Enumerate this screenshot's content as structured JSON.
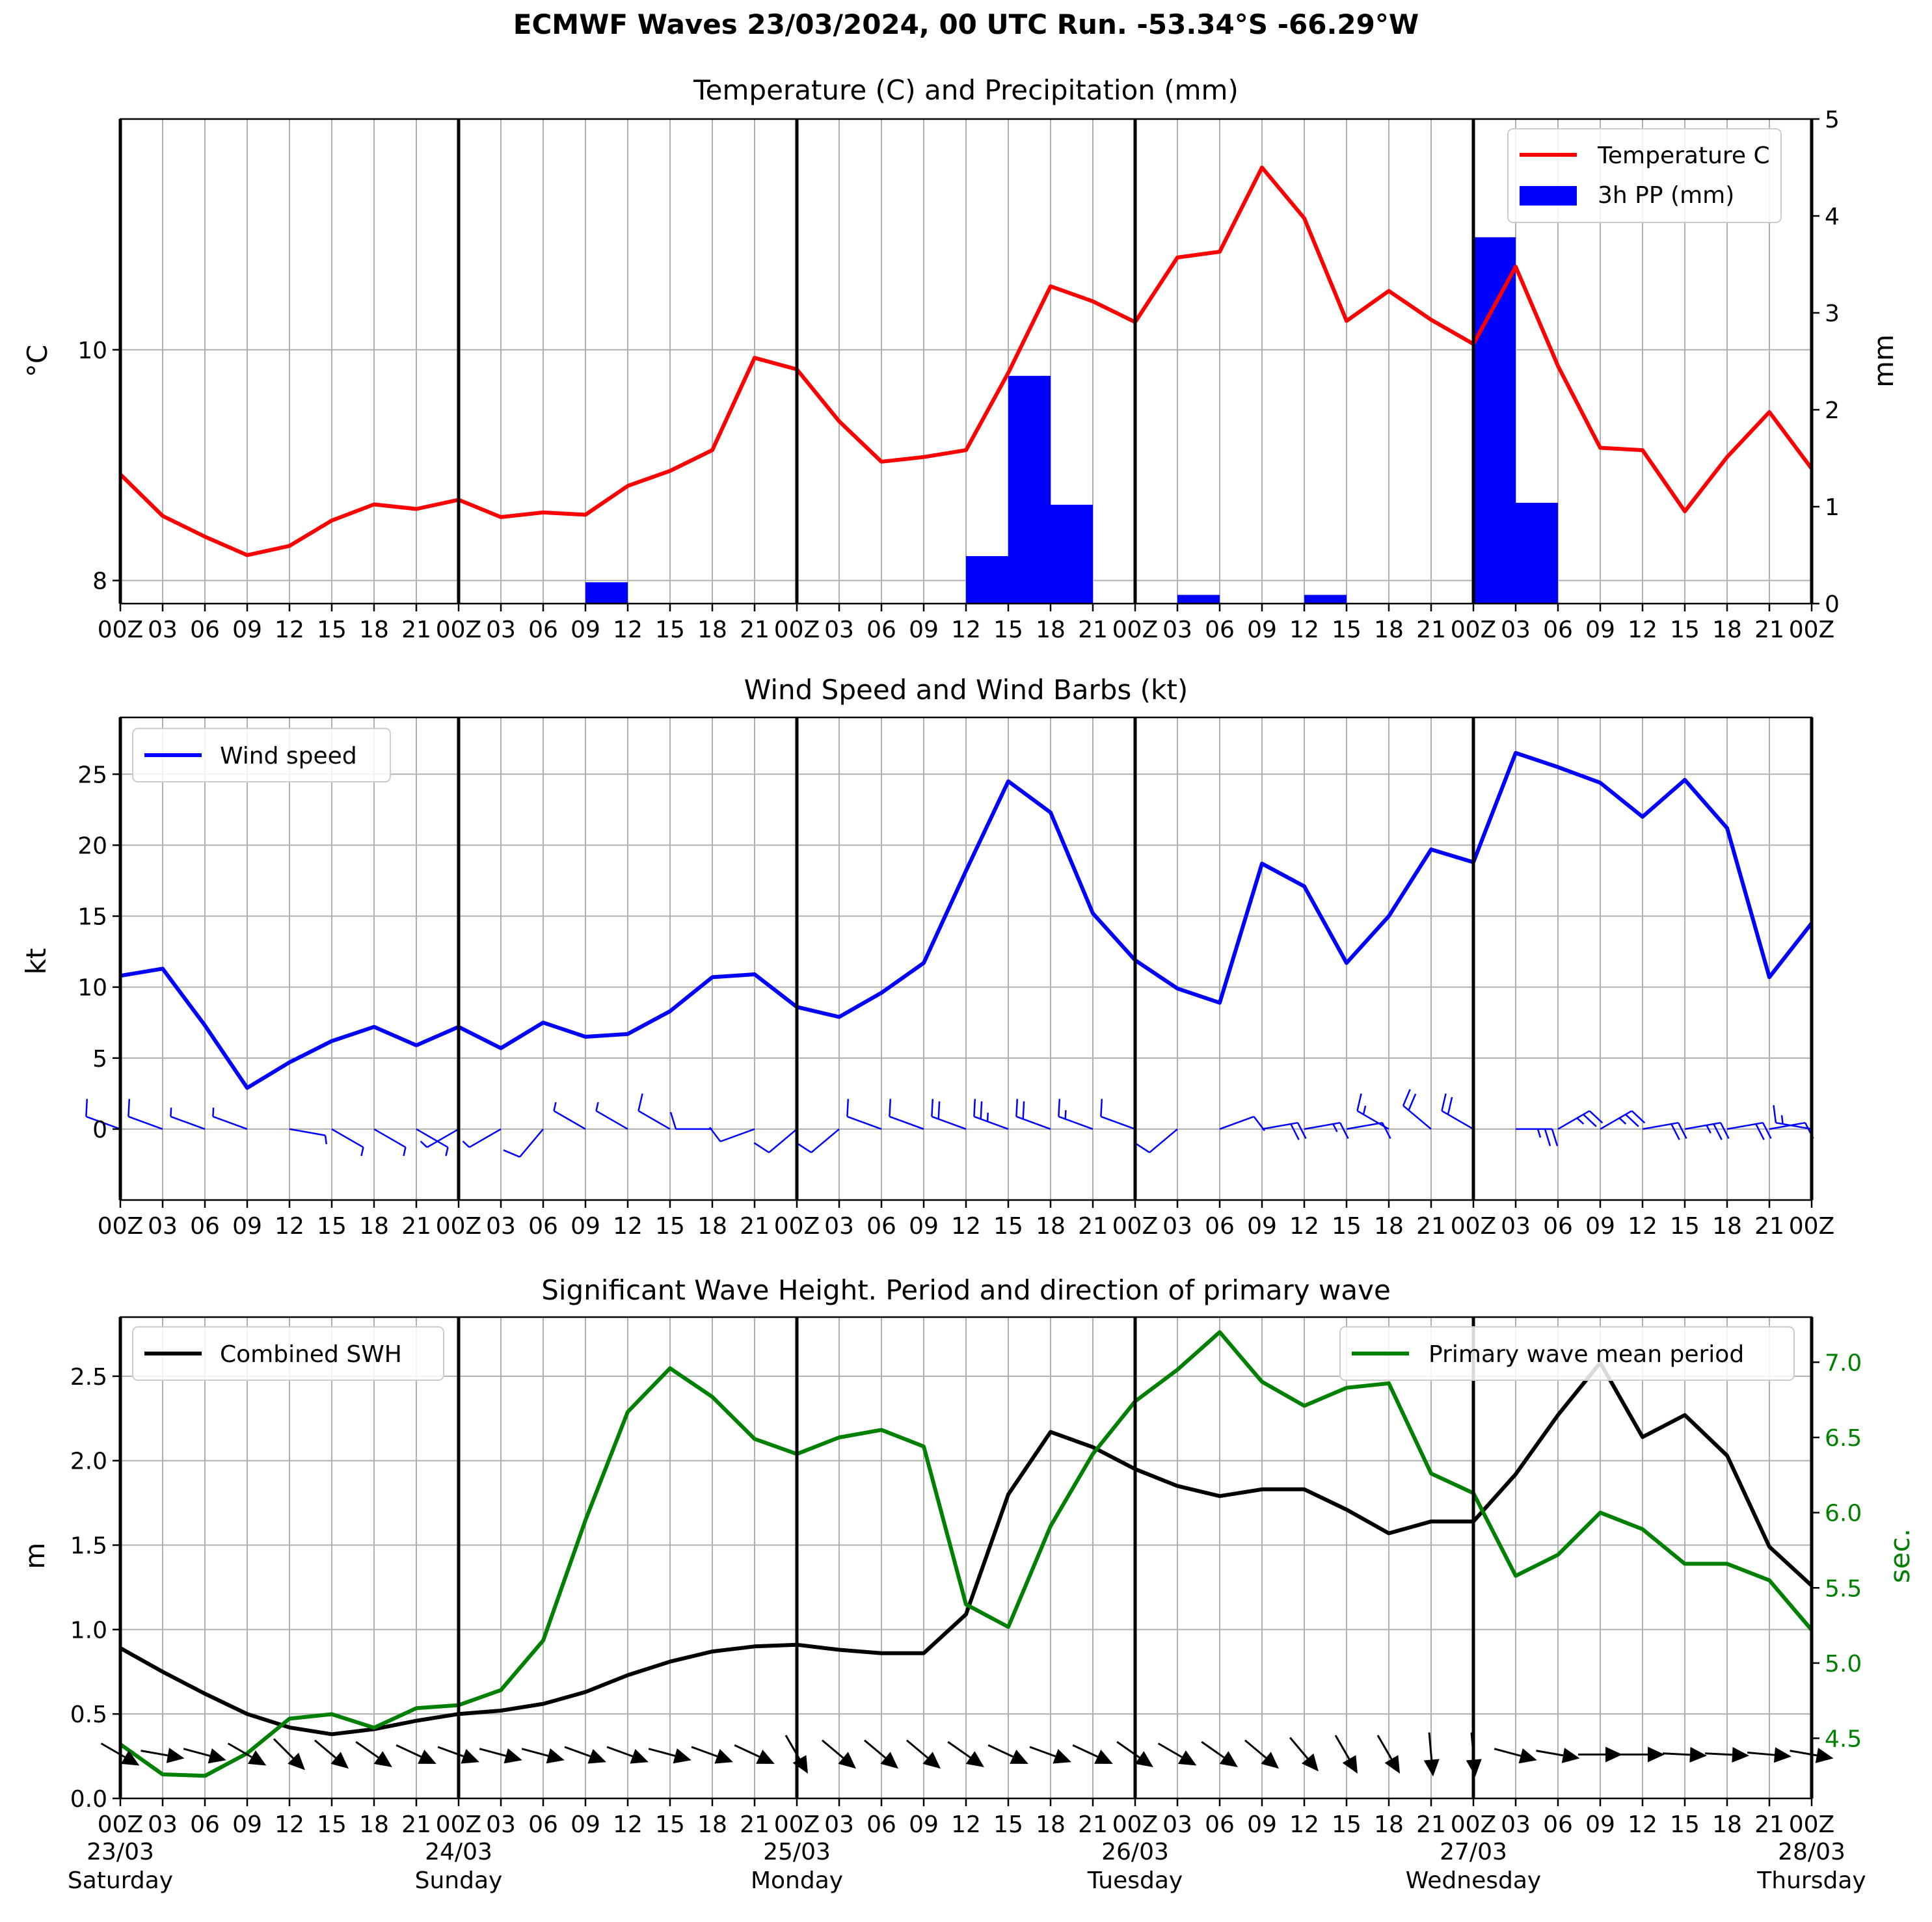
{
  "figure": {
    "title": "ECMWF Waves 23/03/2024, 00 UTC Run. -53.34°S -66.29°W"
  },
  "time_axis": {
    "tick_labels": [
      "00Z",
      "03",
      "06",
      "09",
      "12",
      "15",
      "18",
      "21",
      "00Z",
      "03",
      "06",
      "09",
      "12",
      "15",
      "18",
      "21",
      "00Z",
      "03",
      "06",
      "09",
      "12",
      "15",
      "18",
      "21",
      "00Z",
      "03",
      "06",
      "09",
      "12",
      "15",
      "18",
      "21",
      "00Z",
      "03",
      "06",
      "09",
      "12",
      "15",
      "18",
      "21",
      "00Z"
    ],
    "day_dates": [
      "23/03",
      "24/03",
      "25/03",
      "26/03",
      "27/03",
      "28/03"
    ],
    "day_names": [
      "Saturday",
      "Sunday",
      "Monday",
      "Tuesday",
      "Wednesday",
      "Thursday"
    ]
  },
  "colors": {
    "temperature": "#ff0000",
    "precip": "#0000ff",
    "wind": "#0000ff",
    "swh": "#000000",
    "period": "#008000",
    "grid": "#b0b0b0"
  },
  "chart_data": [
    {
      "type": "line",
      "title": "Temperature (C) and Precipitation (mm)",
      "ylabel": "°C",
      "y2label": "mm",
      "ylim": [
        7.8,
        12.0
      ],
      "y2lim": [
        0,
        5
      ],
      "yticks": [
        8,
        10
      ],
      "y2ticks": [
        0,
        1,
        2,
        3,
        4,
        5
      ],
      "legend_position": "top-right",
      "grid": true,
      "series": [
        {
          "name": "Temperature C",
          "kind": "line",
          "values": [
            8.92,
            8.56,
            8.38,
            8.22,
            8.3,
            8.52,
            8.66,
            8.62,
            8.7,
            8.55,
            8.59,
            8.57,
            8.82,
            8.95,
            9.13,
            9.93,
            9.83,
            9.38,
            9.03,
            9.07,
            9.13,
            9.8,
            10.55,
            10.42,
            10.24,
            10.8,
            10.85,
            11.58,
            11.14,
            10.25,
            10.51,
            10.26,
            10.05,
            10.72,
            9.86,
            9.15,
            9.13,
            8.6,
            9.07,
            9.46,
            8.97
          ]
        },
        {
          "name": "3h PP (mm)",
          "kind": "bar",
          "values": [
            0,
            0,
            0,
            0,
            0,
            0,
            0,
            0,
            0,
            0,
            0,
            0.22,
            0,
            0,
            0,
            0,
            0,
            0,
            0,
            0,
            0.49,
            2.35,
            1.02,
            0,
            0,
            0.09,
            0,
            0,
            0.09,
            0,
            0,
            0,
            3.78,
            1.04,
            0,
            0,
            0,
            0,
            0,
            0,
            0.03
          ]
        }
      ]
    },
    {
      "type": "line",
      "title": "Wind Speed and Wind Barbs (kt)",
      "ylabel": "kt",
      "ylim": [
        -5,
        29
      ],
      "yticks": [
        0,
        5,
        10,
        15,
        20,
        25
      ],
      "legend_position": "top-left",
      "grid": true,
      "series": [
        {
          "name": "Wind speed",
          "values": [
            10.8,
            11.3,
            7.3,
            2.9,
            4.7,
            6.2,
            7.2,
            5.9,
            7.2,
            5.7,
            7.5,
            6.5,
            6.7,
            8.3,
            10.7,
            10.9,
            8.6,
            7.9,
            9.6,
            11.7,
            18.2,
            24.5,
            22.3,
            15.2,
            11.9,
            9.9,
            8.9,
            18.7,
            17.1,
            11.7,
            15.0,
            19.7,
            18.8,
            26.5,
            25.5,
            24.4,
            22.0,
            24.6,
            21.2,
            10.7,
            14.5
          ]
        }
      ],
      "barbs_direction_from_deg": [
        290,
        290,
        290,
        290,
        100,
        120,
        120,
        120,
        240,
        240,
        220,
        300,
        300,
        300,
        270,
        250,
        230,
        230,
        290,
        290,
        290,
        290,
        290,
        290,
        290,
        230,
        70,
        80,
        80,
        80,
        300,
        310,
        300,
        90,
        60,
        60,
        80,
        80,
        80,
        80,
        280
      ]
    },
    {
      "type": "line",
      "title": "Significant Wave Height. Period and direction of primary wave",
      "ylabel": "m",
      "y2label": "sec.",
      "ylim": [
        0.0,
        2.85
      ],
      "y2lim": [
        4.1,
        7.3
      ],
      "yticks": [
        0.0,
        0.5,
        1.0,
        1.5,
        2.0,
        2.5
      ],
      "y2ticks": [
        4.5,
        5.0,
        5.5,
        6.0,
        6.5,
        7.0
      ],
      "grid": true,
      "series": [
        {
          "name": "Combined SWH",
          "legend_position": "top-left",
          "values": [
            0.89,
            0.75,
            0.62,
            0.5,
            0.42,
            0.38,
            0.41,
            0.46,
            0.5,
            0.52,
            0.56,
            0.63,
            0.73,
            0.81,
            0.87,
            0.9,
            0.91,
            0.88,
            0.86,
            0.86,
            1.09,
            1.8,
            2.17,
            2.08,
            1.95,
            1.85,
            1.79,
            1.83,
            1.83,
            1.71,
            1.57,
            1.64,
            1.64,
            1.92,
            2.27,
            2.58,
            2.14,
            2.27,
            2.03,
            1.49,
            1.26
          ]
        },
        {
          "name": "Primary wave mean period",
          "legend_position": "top-right",
          "axis": "right",
          "values": [
            4.46,
            4.26,
            4.25,
            4.4,
            4.63,
            4.66,
            4.57,
            4.7,
            4.72,
            4.82,
            5.15,
            5.95,
            6.67,
            6.96,
            6.77,
            6.49,
            6.39,
            6.5,
            6.55,
            6.44,
            5.39,
            5.24,
            5.91,
            6.39,
            6.74,
            6.95,
            7.2,
            6.87,
            6.71,
            6.83,
            6.86,
            6.26,
            6.13,
            5.58,
            5.72,
            6.0,
            5.89,
            5.66,
            5.66,
            5.55,
            5.22
          ]
        }
      ],
      "wave_direction_to_deg": [
        120,
        100,
        105,
        120,
        135,
        130,
        125,
        115,
        110,
        105,
        105,
        110,
        110,
        105,
        110,
        115,
        150,
        130,
        130,
        130,
        125,
        115,
        110,
        115,
        125,
        120,
        125,
        130,
        140,
        150,
        150,
        175,
        175,
        105,
        100,
        90,
        90,
        93,
        93,
        95,
        100
      ]
    }
  ]
}
